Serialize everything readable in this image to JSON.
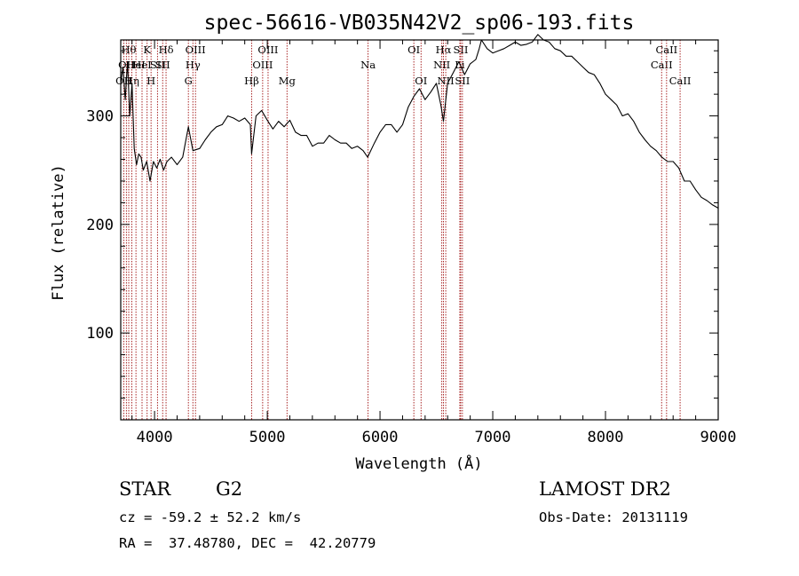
{
  "title": "spec-56616-VB035N42V2_sp06-193.fits",
  "footer": {
    "class_label": "STAR",
    "subclass": "G2",
    "survey": "LAMOST DR2",
    "cz_line": "cz = -59.2 ± 52.2 km/s",
    "obs_date": "Obs-Date: 20131119",
    "radec": "RA =  37.48780, DEC =  42.20779"
  },
  "colors": {
    "spectrum": "#000000",
    "lines": "#a01010",
    "text": "#000000"
  },
  "chart_data": {
    "type": "line",
    "xlabel": "Wavelength (Å)",
    "ylabel": "Flux (relative)",
    "xlim": [
      3700,
      9000
    ],
    "ylim": [
      20,
      370
    ],
    "xticks": [
      4000,
      5000,
      6000,
      7000,
      8000,
      9000
    ],
    "yticks": [
      100,
      200,
      300
    ],
    "grid": false,
    "series": [
      {
        "x": [
          3700,
          3720,
          3740,
          3760,
          3780,
          3800,
          3820,
          3840,
          3860,
          3880,
          3900,
          3930,
          3960,
          3990,
          4020,
          4050,
          4080,
          4110,
          4150,
          4200,
          4250,
          4300,
          4340,
          4400,
          4450,
          4500,
          4550,
          4600,
          4650,
          4700,
          4750,
          4800,
          4850,
          4861,
          4900,
          4950,
          5000,
          5050,
          5100,
          5150,
          5200,
          5250,
          5300,
          5350,
          5400,
          5450,
          5500,
          5550,
          5600,
          5650,
          5700,
          5750,
          5800,
          5850,
          5890,
          5950,
          6000,
          6050,
          6100,
          6150,
          6200,
          6250,
          6300,
          6350,
          6400,
          6450,
          6500,
          6540,
          6563,
          6600,
          6650,
          6700,
          6750,
          6800,
          6850,
          6880,
          6900,
          6950,
          7000,
          7050,
          7100,
          7150,
          7200,
          7250,
          7300,
          7350,
          7400,
          7450,
          7500,
          7550,
          7600,
          7650,
          7700,
          7750,
          7800,
          7850,
          7900,
          7950,
          8000,
          8050,
          8100,
          8150,
          8200,
          8250,
          8300,
          8350,
          8400,
          8450,
          8500,
          8550,
          8600,
          8650,
          8700,
          8750,
          8800,
          8850,
          8900,
          8950,
          9000
        ],
        "y": [
          330,
          345,
          315,
          350,
          300,
          330,
          270,
          255,
          265,
          262,
          250,
          258,
          240,
          258,
          252,
          260,
          250,
          258,
          262,
          255,
          262,
          290,
          268,
          270,
          278,
          285,
          290,
          292,
          300,
          298,
          295,
          298,
          292,
          265,
          300,
          305,
          296,
          288,
          295,
          290,
          296,
          285,
          282,
          282,
          272,
          275,
          275,
          282,
          278,
          275,
          275,
          270,
          272,
          268,
          262,
          275,
          285,
          292,
          292,
          285,
          292,
          308,
          318,
          325,
          315,
          322,
          330,
          310,
          295,
          330,
          340,
          350,
          338,
          348,
          352,
          362,
          370,
          362,
          358,
          360,
          362,
          365,
          368,
          365,
          366,
          368,
          375,
          370,
          368,
          362,
          360,
          355,
          355,
          350,
          345,
          340,
          338,
          330,
          320,
          315,
          310,
          300,
          302,
          295,
          285,
          278,
          272,
          268,
          262,
          258,
          258,
          252,
          240,
          240,
          232,
          225,
          222,
          218,
          215
        ]
      }
    ],
    "lines": [
      {
        "wave": 3727,
        "label": "OII",
        "row": 3
      },
      {
        "wave": 3750,
        "label": "OII",
        "row": 2
      },
      {
        "wave": 3771,
        "label": "Hθ",
        "row": 1
      },
      {
        "wave": 3798,
        "label": "Hη",
        "row": 3
      },
      {
        "wave": 3835,
        "label": "HeI",
        "row": 2
      },
      {
        "wave": 3889,
        "label": "HeI",
        "row": 2
      },
      {
        "wave": 3934,
        "label": "K",
        "row": 1
      },
      {
        "wave": 3969,
        "label": "H",
        "row": 3
      },
      {
        "wave": 4026,
        "label": "SII",
        "row": 2
      },
      {
        "wave": 4072,
        "label": "SII",
        "row": 2
      },
      {
        "wave": 4102,
        "label": "Hδ",
        "row": 1
      },
      {
        "wave": 4300,
        "label": "G",
        "row": 3
      },
      {
        "wave": 4340,
        "label": "Hγ",
        "row": 2
      },
      {
        "wave": 4363,
        "label": "OIII",
        "row": 1
      },
      {
        "wave": 4861,
        "label": "Hβ",
        "row": 3
      },
      {
        "wave": 4959,
        "label": "OIII",
        "row": 2
      },
      {
        "wave": 5007,
        "label": "OIII",
        "row": 1
      },
      {
        "wave": 5175,
        "label": "Mg",
        "row": 3
      },
      {
        "wave": 5894,
        "label": "Na",
        "row": 2
      },
      {
        "wave": 6300,
        "label": "OI",
        "row": 1
      },
      {
        "wave": 6364,
        "label": "OI",
        "row": 3
      },
      {
        "wave": 6548,
        "label": "NII",
        "row": 2
      },
      {
        "wave": 6563,
        "label": "Hα",
        "row": 1
      },
      {
        "wave": 6583,
        "label": "NII",
        "row": 3
      },
      {
        "wave": 6708,
        "label": "Li",
        "row": 2
      },
      {
        "wave": 6716,
        "label": "SII",
        "row": 1
      },
      {
        "wave": 6731,
        "label": "SII",
        "row": 3
      },
      {
        "wave": 8498,
        "label": "CaII",
        "row": 2
      },
      {
        "wave": 8542,
        "label": "CaII",
        "row": 1
      },
      {
        "wave": 8662,
        "label": "CaII",
        "row": 3
      }
    ]
  }
}
